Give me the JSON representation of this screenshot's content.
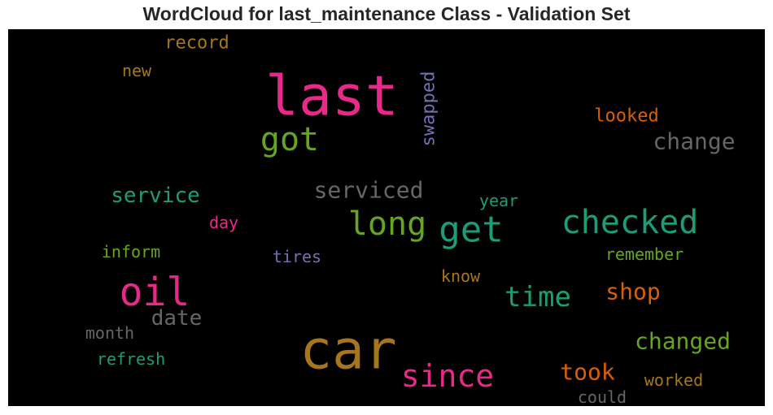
{
  "chart_data": {
    "type": "wordcloud",
    "title": "WordCloud for last_maintenance Class - Validation Set",
    "background": "#000000",
    "words": [
      {
        "text": "last",
        "color": "#e7298a",
        "orientation": "horizontal"
      },
      {
        "text": "car",
        "color": "#a6761d",
        "orientation": "horizontal"
      },
      {
        "text": "oil",
        "color": "#e7298a",
        "orientation": "horizontal"
      },
      {
        "text": "get",
        "color": "#1b9e77",
        "orientation": "horizontal"
      },
      {
        "text": "long",
        "color": "#66a61e",
        "orientation": "horizontal"
      },
      {
        "text": "checked",
        "color": "#1b9e77",
        "orientation": "horizontal"
      },
      {
        "text": "got",
        "color": "#66a61e",
        "orientation": "horizontal"
      },
      {
        "text": "since",
        "color": "#e7298a",
        "orientation": "horizontal"
      },
      {
        "text": "time",
        "color": "#1b9e77",
        "orientation": "horizontal"
      },
      {
        "text": "change",
        "color": "#666666",
        "orientation": "horizontal"
      },
      {
        "text": "serviced",
        "color": "#666666",
        "orientation": "horizontal"
      },
      {
        "text": "changed",
        "color": "#66a61e",
        "orientation": "horizontal"
      },
      {
        "text": "service",
        "color": "#1b9e77",
        "orientation": "horizontal"
      },
      {
        "text": "shop",
        "color": "#d95f02",
        "orientation": "horizontal"
      },
      {
        "text": "took",
        "color": "#d95f02",
        "orientation": "horizontal"
      },
      {
        "text": "date",
        "color": "#666666",
        "orientation": "horizontal"
      },
      {
        "text": "swapped",
        "color": "#7570b3",
        "orientation": "vertical"
      },
      {
        "text": "looked",
        "color": "#d95f02",
        "orientation": "horizontal"
      },
      {
        "text": "record",
        "color": "#a6761d",
        "orientation": "horizontal"
      },
      {
        "text": "new",
        "color": "#a6761d",
        "orientation": "horizontal"
      },
      {
        "text": "year",
        "color": "#1b9e77",
        "orientation": "horizontal"
      },
      {
        "text": "day",
        "color": "#e7298a",
        "orientation": "horizontal"
      },
      {
        "text": "inform",
        "color": "#66a61e",
        "orientation": "horizontal"
      },
      {
        "text": "tires",
        "color": "#7570b3",
        "orientation": "horizontal"
      },
      {
        "text": "remember",
        "color": "#66a61e",
        "orientation": "horizontal"
      },
      {
        "text": "know",
        "color": "#a6761d",
        "orientation": "horizontal"
      },
      {
        "text": "month",
        "color": "#666666",
        "orientation": "horizontal"
      },
      {
        "text": "refresh",
        "color": "#1b9e77",
        "orientation": "horizontal"
      },
      {
        "text": "worked",
        "color": "#a6761d",
        "orientation": "horizontal"
      },
      {
        "text": "could",
        "color": "#666666",
        "orientation": "horizontal"
      }
    ]
  }
}
